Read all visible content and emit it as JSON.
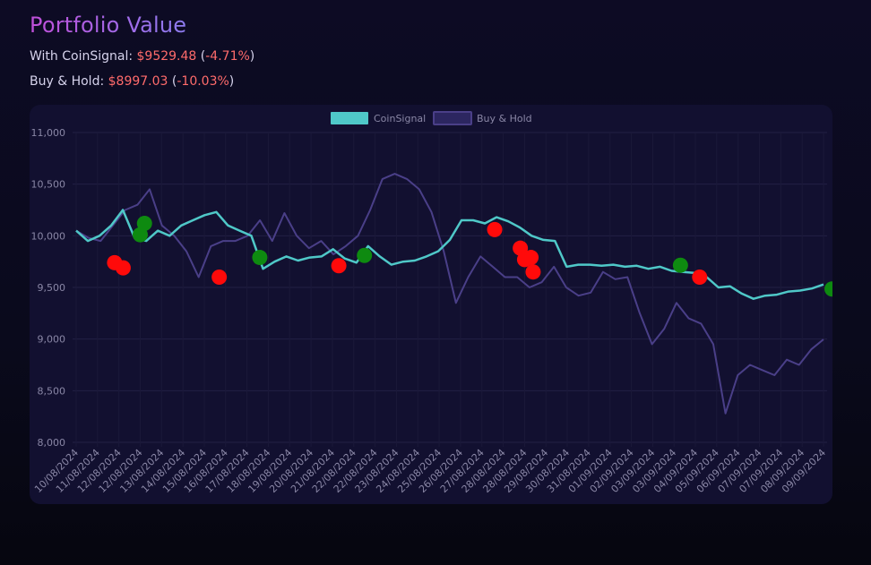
{
  "header": {
    "title": "Portfolio Value",
    "coinsignal_label": "With CoinSignal:",
    "coinsignal_value": "$9529.48",
    "coinsignal_pct": "-4.71%",
    "hold_label": "Buy & Hold:",
    "hold_value": "$8997.03",
    "hold_pct": "-10.03%"
  },
  "colors": {
    "coinsignal_line": "#4fc8c8",
    "hold_line": "#4a3f88",
    "buy_marker": "#0e8a10",
    "sell_marker": "#ff0a0a",
    "loss_text": "#ff6b6b"
  },
  "chart_data": {
    "type": "line",
    "title": "",
    "legend_position": "top-center",
    "grid": true,
    "ylim": [
      8000,
      11000
    ],
    "yticks": [
      "8,000",
      "8,500",
      "9,000",
      "9,500",
      "10,000",
      "10,500",
      "11,000"
    ],
    "x_labels": [
      "10/08/2024",
      "11/08/2024",
      "12/08/2024",
      "12/08/2024",
      "13/08/2024",
      "14/08/2024",
      "15/08/2024",
      "16/08/2024",
      "17/08/2024",
      "18/08/2024",
      "19/08/2024",
      "20/08/2024",
      "21/08/2024",
      "22/08/2024",
      "22/08/2024",
      "23/08/2024",
      "24/08/2024",
      "25/08/2024",
      "26/08/2024",
      "27/08/2024",
      "28/08/2024",
      "28/08/2024",
      "29/08/2024",
      "30/08/2024",
      "31/08/2024",
      "01/09/2024",
      "02/09/2024",
      "03/09/2024",
      "03/09/2024",
      "04/09/2024",
      "05/09/2024",
      "06/09/2024",
      "07/09/2024",
      "07/09/2024",
      "08/09/2024",
      "09/09/2024"
    ],
    "series": [
      {
        "name": "CoinSignal",
        "values": [
          10050,
          9950,
          10000,
          10100,
          10250,
          9980,
          9950,
          10050,
          10000,
          10100,
          10150,
          10200,
          10230,
          10100,
          10050,
          10000,
          9680,
          9750,
          9800,
          9760,
          9790,
          9800,
          9870,
          9780,
          9740,
          9900,
          9800,
          9720,
          9750,
          9760,
          9800,
          9850,
          9960,
          10150,
          10150,
          10120,
          10180,
          10140,
          10080,
          10000,
          9960,
          9950,
          9700,
          9720,
          9720,
          9710,
          9720,
          9700,
          9710,
          9680,
          9700,
          9660,
          9650,
          9640,
          9600,
          9500,
          9510,
          9440,
          9390,
          9420,
          9430,
          9460,
          9470,
          9490,
          9529
        ]
      },
      {
        "name": "Buy & Hold",
        "values": [
          10050,
          9980,
          9950,
          10100,
          10250,
          10300,
          10450,
          10100,
          10000,
          9850,
          9600,
          9900,
          9950,
          9950,
          10000,
          10150,
          9950,
          10220,
          10000,
          9880,
          9950,
          9820,
          9900,
          10000,
          10250,
          10550,
          10600,
          10550,
          10450,
          10230,
          9850,
          9350,
          9600,
          9800,
          9700,
          9600,
          9600,
          9500,
          9550,
          9700,
          9500,
          9420,
          9450,
          9650,
          9580,
          9600,
          9250,
          8950,
          9100,
          9350,
          9200,
          9150,
          8950,
          8280,
          8650,
          8750,
          8700,
          8650,
          8800,
          8750,
          8900,
          8997
        ]
      }
    ],
    "buy_signals": [
      {
        "x": 3.2,
        "y": 10120
      },
      {
        "x": 3.0,
        "y": 10010
      },
      {
        "x": 8.6,
        "y": 9790
      },
      {
        "x": 13.5,
        "y": 9810
      },
      {
        "x": 28.3,
        "y": 9715
      },
      {
        "x": 35.4,
        "y": 9485
      }
    ],
    "sell_signals": [
      {
        "x": 1.8,
        "y": 9740
      },
      {
        "x": 2.2,
        "y": 9690
      },
      {
        "x": 6.7,
        "y": 9600
      },
      {
        "x": 12.3,
        "y": 9710
      },
      {
        "x": 19.6,
        "y": 10060
      },
      {
        "x": 20.8,
        "y": 9880
      },
      {
        "x": 21.0,
        "y": 9770
      },
      {
        "x": 21.3,
        "y": 9790
      },
      {
        "x": 21.4,
        "y": 9650
      },
      {
        "x": 29.2,
        "y": 9600
      }
    ]
  }
}
